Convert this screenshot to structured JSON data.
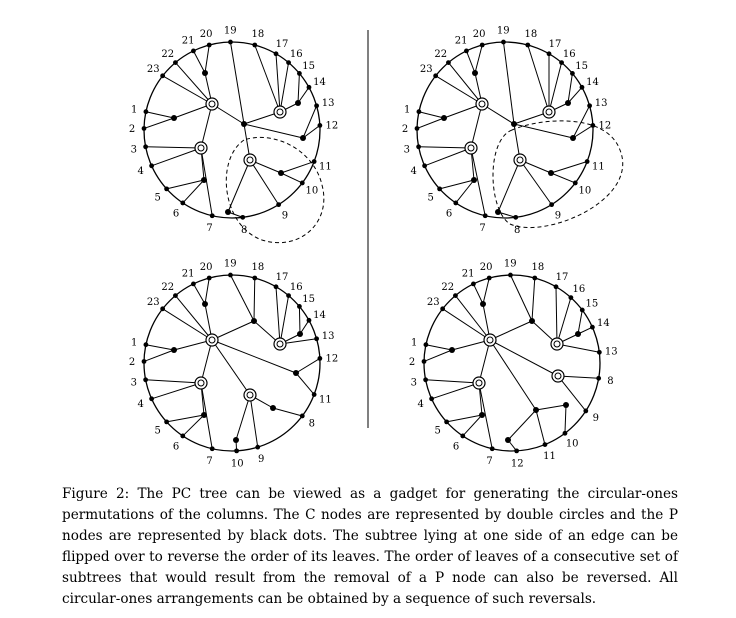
{
  "figure": {
    "panels": [
      {
        "id": "top-left",
        "cnodes": [
          [
            212,
            104
          ],
          [
            280,
            112
          ],
          [
            201,
            148
          ],
          [
            250,
            160
          ]
        ],
        "pnodes": [
          [
            205,
            73
          ],
          [
            174,
            118
          ],
          [
            244,
            124
          ],
          [
            298,
            103
          ],
          [
            303,
            138
          ],
          [
            204,
            180
          ],
          [
            281,
            173
          ],
          [
            228,
            212
          ]
        ],
        "leaves": [
          {
            "label": "1",
            "deg": 192
          },
          {
            "label": "2",
            "deg": 181
          },
          {
            "label": "3",
            "deg": 169
          },
          {
            "label": "4",
            "deg": 156
          },
          {
            "label": "5",
            "deg": 138
          },
          {
            "label": "6",
            "deg": 124
          },
          {
            "label": "7",
            "deg": 103
          },
          {
            "label": "8",
            "deg": 83
          },
          {
            "label": "9",
            "deg": 58
          },
          {
            "label": "10",
            "deg": 37
          },
          {
            "label": "11",
            "deg": 21
          },
          {
            "label": "12",
            "deg": 357
          },
          {
            "label": "13",
            "deg": 344
          },
          {
            "label": "14",
            "deg": 331
          },
          {
            "label": "15",
            "deg": 320
          },
          {
            "label": "16",
            "deg": 310
          },
          {
            "label": "17",
            "deg": 300
          },
          {
            "label": "18",
            "deg": 285
          },
          {
            "label": "19",
            "deg": 269
          },
          {
            "label": "20",
            "deg": 255
          },
          {
            "label": "21",
            "deg": 244
          },
          {
            "label": "22",
            "deg": 230
          },
          {
            "label": "23",
            "deg": 218
          }
        ]
      },
      {
        "id": "top-right",
        "cnodes": [
          [
            482,
            104
          ],
          [
            549,
            112
          ],
          [
            471,
            148
          ],
          [
            520,
            160
          ]
        ],
        "pnodes": [
          [
            475,
            73
          ],
          [
            444,
            118
          ],
          [
            514,
            124
          ],
          [
            568,
            103
          ],
          [
            573,
            138
          ],
          [
            474,
            180
          ],
          [
            551,
            173
          ],
          [
            498,
            212
          ]
        ],
        "leaves": [
          {
            "label": "1",
            "deg": 192
          },
          {
            "label": "2",
            "deg": 181
          },
          {
            "label": "3",
            "deg": 169
          },
          {
            "label": "4",
            "deg": 156
          },
          {
            "label": "5",
            "deg": 138
          },
          {
            "label": "6",
            "deg": 124
          },
          {
            "label": "7",
            "deg": 103
          },
          {
            "label": "8",
            "deg": 83
          },
          {
            "label": "9",
            "deg": 58
          },
          {
            "label": "10",
            "deg": 37
          },
          {
            "label": "11",
            "deg": 21
          },
          {
            "label": "12",
            "deg": 357
          },
          {
            "label": "13",
            "deg": 344
          },
          {
            "label": "14",
            "deg": 331
          },
          {
            "label": "15",
            "deg": 320
          },
          {
            "label": "16",
            "deg": 310
          },
          {
            "label": "17",
            "deg": 300
          },
          {
            "label": "18",
            "deg": 285
          },
          {
            "label": "19",
            "deg": 269
          },
          {
            "label": "20",
            "deg": 255
          },
          {
            "label": "21",
            "deg": 244
          },
          {
            "label": "22",
            "deg": 230
          },
          {
            "label": "23",
            "deg": 218
          }
        ]
      },
      {
        "id": "bottom-left",
        "cnodes": [
          [
            212,
            340
          ],
          [
            280,
            344
          ],
          [
            201,
            383
          ],
          [
            250,
            395
          ]
        ],
        "pnodes": [
          [
            205,
            304
          ],
          [
            174,
            350
          ],
          [
            254,
            321
          ],
          [
            300,
            334
          ],
          [
            296,
            373
          ],
          [
            204,
            415
          ],
          [
            273,
            408
          ],
          [
            236,
            440
          ]
        ],
        "leaves": [
          {
            "label": "1",
            "deg": 192
          },
          {
            "label": "2",
            "deg": 181
          },
          {
            "label": "3",
            "deg": 169
          },
          {
            "label": "4",
            "deg": 156
          },
          {
            "label": "5",
            "deg": 138
          },
          {
            "label": "6",
            "deg": 124
          },
          {
            "label": "7",
            "deg": 103
          },
          {
            "label": "10",
            "deg": 87
          },
          {
            "label": "9",
            "deg": 73
          },
          {
            "label": "8",
            "deg": 37
          },
          {
            "label": "11",
            "deg": 21
          },
          {
            "label": "12",
            "deg": 357
          },
          {
            "label": "13",
            "deg": 344
          },
          {
            "label": "14",
            "deg": 331
          },
          {
            "label": "15",
            "deg": 320
          },
          {
            "label": "16",
            "deg": 310
          },
          {
            "label": "17",
            "deg": 300
          },
          {
            "label": "18",
            "deg": 285
          },
          {
            "label": "19",
            "deg": 269
          },
          {
            "label": "20",
            "deg": 255
          },
          {
            "label": "21",
            "deg": 244
          },
          {
            "label": "22",
            "deg": 230
          },
          {
            "label": "23",
            "deg": 218
          }
        ]
      },
      {
        "id": "bottom-right",
        "cnodes": [
          [
            490,
            340
          ],
          [
            557,
            344
          ],
          [
            479,
            383
          ],
          [
            558,
            376
          ]
        ],
        "pnodes": [
          [
            483,
            304
          ],
          [
            452,
            350
          ],
          [
            532,
            321
          ],
          [
            578,
            334
          ],
          [
            536,
            410
          ],
          [
            482,
            415
          ],
          [
            566,
            405
          ],
          [
            508,
            440
          ]
        ],
        "leaves": [
          {
            "label": "1",
            "deg": 192
          },
          {
            "label": "2",
            "deg": 181
          },
          {
            "label": "3",
            "deg": 169
          },
          {
            "label": "4",
            "deg": 156
          },
          {
            "label": "5",
            "deg": 138
          },
          {
            "label": "6",
            "deg": 124
          },
          {
            "label": "7",
            "deg": 103
          },
          {
            "label": "12",
            "deg": 87
          },
          {
            "label": "11",
            "deg": 68
          },
          {
            "label": "10",
            "deg": 53
          },
          {
            "label": "9",
            "deg": 33
          },
          {
            "label": "8",
            "deg": 10
          },
          {
            "label": "13",
            "deg": 353
          },
          {
            "label": "14",
            "deg": 336
          },
          {
            "label": "15",
            "deg": 323
          },
          {
            "label": "16",
            "deg": 312
          },
          {
            "label": "17",
            "deg": 300
          },
          {
            "label": "18",
            "deg": 285
          },
          {
            "label": "19",
            "deg": 269
          },
          {
            "label": "20",
            "deg": 255
          },
          {
            "label": "21",
            "deg": 244
          },
          {
            "label": "22",
            "deg": 230
          },
          {
            "label": "23",
            "deg": 218
          }
        ]
      }
    ]
  },
  "caption": "Figure 2: The PC tree can be viewed as a gadget for generating the circular-ones permutations of the columns. The C nodes are represented by double circles and the P nodes are represented by black dots. The subtree lying at one side of an edge can be flipped over to reverse the order of its leaves. The order of leaves of a consecutive set of subtrees that would result from the removal of a P node can also be reversed. All circular-ones arrangements can be obtained by a sequence of such reversals."
}
